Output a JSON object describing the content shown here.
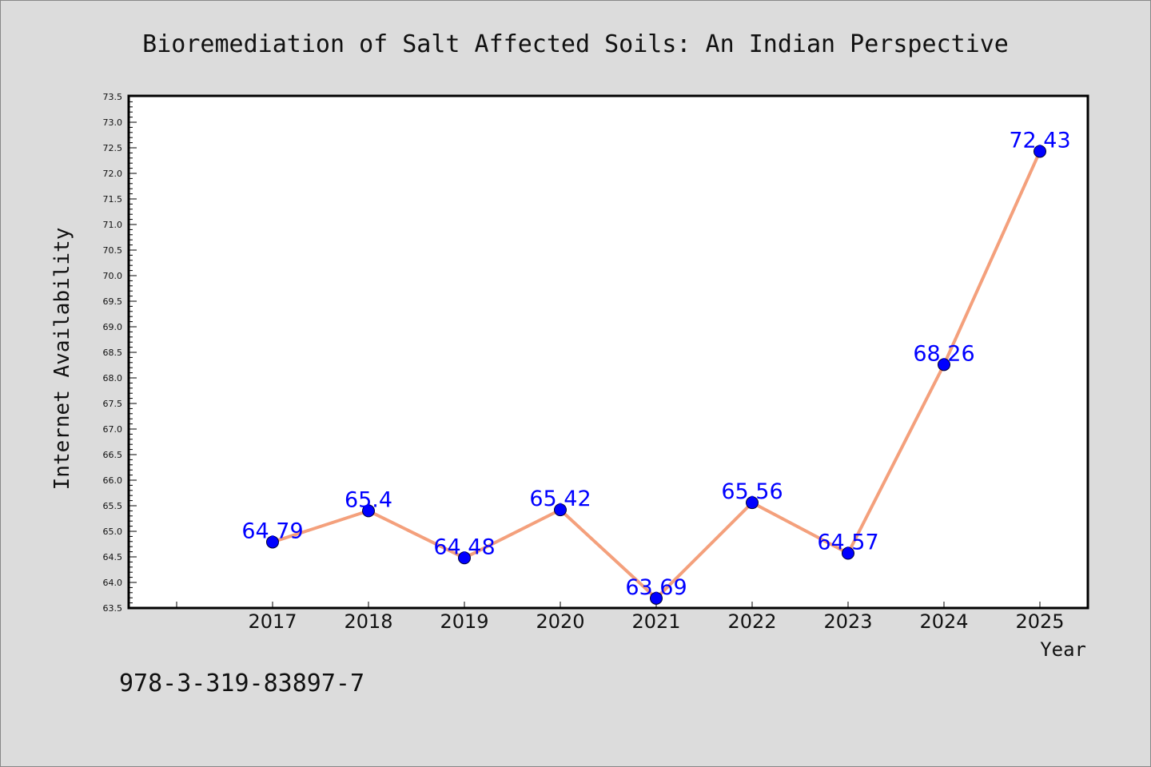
{
  "chart_data": {
    "type": "line",
    "title": "Bioremediation of Salt Affected Soils: An Indian Perspective",
    "xlabel": "Year",
    "ylabel": "Internet Availability",
    "categories": [
      "2017",
      "2018",
      "2019",
      "2020",
      "2021",
      "2022",
      "2023",
      "2024",
      "2025"
    ],
    "series": [
      {
        "values": [
          64.79,
          65.4,
          64.48,
          65.42,
          63.69,
          65.56,
          64.57,
          68.26,
          72.43
        ]
      }
    ],
    "data_labels": [
      "64.79",
      "65.4",
      "64.48",
      "65.42",
      "63.69",
      "65.56",
      "64.57",
      "68.26",
      "72.43"
    ],
    "ylim": [
      63.5,
      73.5
    ],
    "yticks": [
      "63.5",
      "64.0",
      "64.5",
      "65.0",
      "65.5",
      "66.0",
      "66.5",
      "67.0",
      "67.5",
      "68.0",
      "68.5",
      "69.0",
      "69.5",
      "70.0",
      "70.5",
      "71.0",
      "71.5",
      "72.0",
      "72.5",
      "73.0",
      "73.5"
    ],
    "grid": false,
    "line_color": "#f4a07c",
    "marker_color": "#0000ff",
    "label_color": "#0000ff"
  },
  "annotation": "978-3-319-83897-7"
}
